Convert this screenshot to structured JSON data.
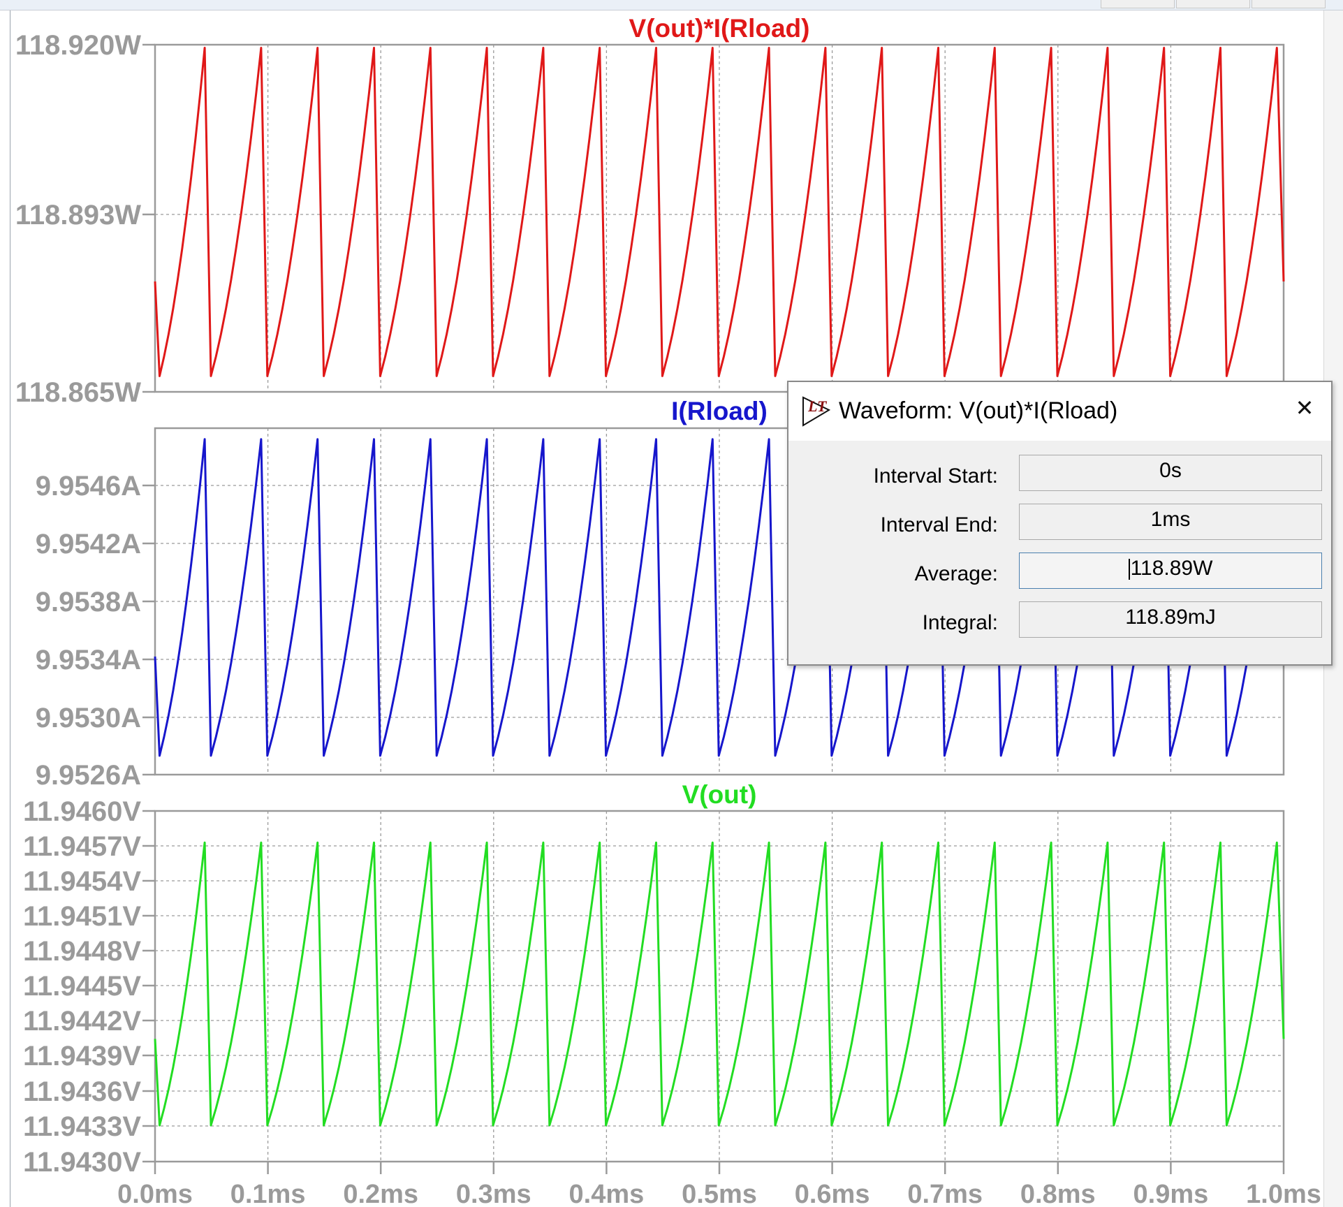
{
  "window": {
    "background": "#ffffff"
  },
  "panes": [
    {
      "title": "V(out)*I(Rload)",
      "color": "#e01818",
      "y_ticks": [
        "118.920W",
        "118.893W",
        "118.865W"
      ]
    },
    {
      "title": "I(Rload)",
      "color": "#1616cc",
      "y_ticks": [
        "9.9546A",
        "9.9542A",
        "9.9538A",
        "9.9534A",
        "9.9530A",
        "9.9526A"
      ]
    },
    {
      "title": "V(out)",
      "color": "#22dd22",
      "y_ticks": [
        "11.9460V",
        "11.9457V",
        "11.9454V",
        "11.9451V",
        "11.9448V",
        "11.9445V",
        "11.9442V",
        "11.9439V",
        "11.9436V",
        "11.9433V",
        "11.9430V"
      ]
    }
  ],
  "x_ticks": [
    "0.0ms",
    "0.1ms",
    "0.2ms",
    "0.3ms",
    "0.4ms",
    "0.5ms",
    "0.6ms",
    "0.7ms",
    "0.8ms",
    "0.9ms",
    "1.0ms"
  ],
  "chart_data": [
    {
      "type": "line",
      "title": "V(out)*I(Rload)",
      "xlabel": "",
      "ylabel": "",
      "x_unit": "ms",
      "xlim": [
        0,
        1.0
      ],
      "ylim": [
        118.865,
        118.92
      ],
      "y_ticks": [
        118.92,
        118.893,
        118.865
      ],
      "grid": true,
      "series": [
        {
          "name": "V(out)*I(Rload)",
          "waveform": "sawtooth ripple",
          "period_ms": 0.05,
          "peak_times_ms": [
            0.044,
            0.094,
            0.144,
            0.194,
            0.244,
            0.294,
            0.344,
            0.394,
            0.444,
            0.494,
            0.544,
            0.594,
            0.644,
            0.694,
            0.744,
            0.794,
            0.844,
            0.894,
            0.944,
            0.994
          ],
          "peak_value": 118.9195,
          "trough_value": 118.8675,
          "start_value": 118.8825,
          "end_value": 118.8825
        }
      ]
    },
    {
      "type": "line",
      "title": "I(Rload)",
      "xlabel": "",
      "ylabel": "",
      "x_unit": "ms",
      "xlim": [
        0,
        1.0
      ],
      "ylim": [
        9.9526,
        9.9548
      ],
      "y_ticks": [
        9.9546,
        9.9542,
        9.9538,
        9.9534,
        9.953,
        9.9526
      ],
      "grid": true,
      "series": [
        {
          "name": "I(Rload)",
          "waveform": "sawtooth ripple",
          "period_ms": 0.05,
          "peak_times_ms": [
            0.044,
            0.094,
            0.144,
            0.194,
            0.244,
            0.294,
            0.344,
            0.394,
            0.444,
            0.494,
            0.544,
            0.594,
            0.644,
            0.694,
            0.744,
            0.794,
            0.844,
            0.894,
            0.944,
            0.994
          ],
          "peak_value": 9.95473,
          "trough_value": 9.95272,
          "start_value": 9.95335,
          "end_value": 9.95335
        }
      ]
    },
    {
      "type": "line",
      "title": "V(out)",
      "xlabel": "",
      "ylabel": "",
      "x_unit": "ms",
      "xlim": [
        0,
        1.0
      ],
      "ylim": [
        11.943,
        11.946
      ],
      "y_ticks": [
        11.946,
        11.9457,
        11.9454,
        11.9451,
        11.9448,
        11.9445,
        11.9442,
        11.9439,
        11.9436,
        11.9433,
        11.943
      ],
      "grid": true,
      "series": [
        {
          "name": "V(out)",
          "waveform": "sawtooth ripple",
          "period_ms": 0.05,
          "peak_times_ms": [
            0.044,
            0.094,
            0.144,
            0.194,
            0.244,
            0.294,
            0.344,
            0.394,
            0.444,
            0.494,
            0.544,
            0.594,
            0.644,
            0.694,
            0.744,
            0.794,
            0.844,
            0.894,
            0.944,
            0.994
          ],
          "peak_value": 11.94573,
          "trough_value": 11.94331,
          "start_value": 11.94405,
          "end_value": 11.94405
        }
      ]
    }
  ],
  "dialog": {
    "title": "Waveform: V(out)*I(Rload)",
    "close_glyph": "✕",
    "logo_icon": "ltspice-logo-icon",
    "rows": [
      {
        "label": "Interval Start:",
        "value": "0s"
      },
      {
        "label": "Interval End:",
        "value": "1ms"
      },
      {
        "label": "Average:",
        "value": "118.89W"
      },
      {
        "label": "Integral:",
        "value": "118.89mJ"
      }
    ]
  }
}
